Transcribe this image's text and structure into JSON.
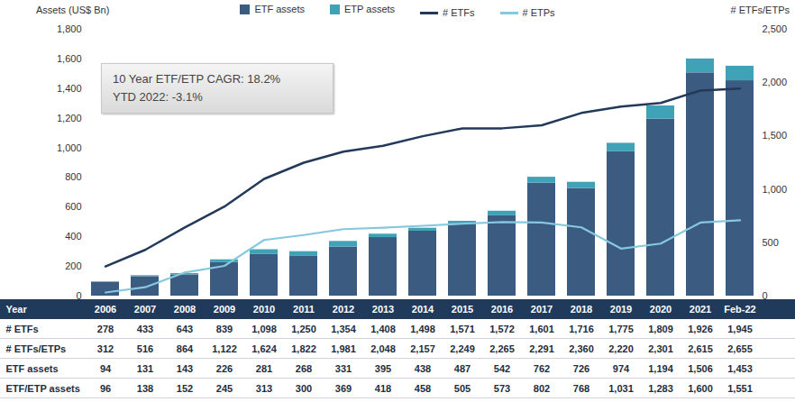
{
  "chart_data": {
    "type": "bar",
    "stacked": true,
    "legend": "top",
    "grid": false,
    "ylabel": "Assets (US$ Bn)",
    "y2label": "# ETFs/ETPs",
    "annotations": [
      "10 Year ETF/ETP CAGR: 18.2%",
      "YTD 2022: -3.1%"
    ],
    "categories": [
      "2006",
      "2007",
      "2008",
      "2009",
      "2010",
      "2011",
      "2012",
      "2013",
      "2014",
      "2015",
      "2016",
      "2017",
      "2018",
      "2019",
      "2020",
      "2021",
      "Feb-22"
    ],
    "series": [
      {
        "name": "ETF assets",
        "type": "bar",
        "color": "#3b5b80",
        "values": [
          94,
          131,
          143,
          226,
          281,
          268,
          331,
          395,
          438,
          487,
          542,
          762,
          726,
          974,
          1194,
          1506,
          1453
        ]
      },
      {
        "name": "ETP assets",
        "type": "bar",
        "color": "#3fa2b6",
        "values": [
          2,
          7,
          9,
          19,
          32,
          32,
          38,
          23,
          20,
          18,
          31,
          40,
          42,
          57,
          89,
          94,
          98
        ]
      },
      {
        "name": "# ETFs",
        "type": "line",
        "axis": "y2",
        "color": "#22395a",
        "values": [
          278,
          433,
          643,
          839,
          1098,
          1250,
          1354,
          1408,
          1498,
          1571,
          1572,
          1601,
          1716,
          1775,
          1809,
          1926,
          1945
        ]
      },
      {
        "name": "# ETPs",
        "type": "line",
        "axis": "y2",
        "color": "#86c8df",
        "values": [
          34,
          83,
          221,
          283,
          526,
          572,
          627,
          640,
          659,
          678,
          693,
          690,
          644,
          445,
          492,
          689,
          710
        ]
      }
    ],
    "ylim": [
      0,
      1800
    ],
    "yticks": [
      0,
      200,
      400,
      600,
      800,
      {
        "value": 1000,
        "label": "1,000"
      },
      {
        "value": 1200,
        "label": "1,200"
      },
      {
        "value": 1400,
        "label": "1,400"
      },
      {
        "value": 1600,
        "label": "1,600"
      },
      {
        "value": 1800,
        "label": "1,800"
      }
    ],
    "y2lim": [
      0,
      2500
    ],
    "y2ticks": [
      0,
      500,
      {
        "value": 1000,
        "label": "1,000"
      },
      {
        "value": 1500,
        "label": "1,500"
      },
      {
        "value": 2000,
        "label": "2,000"
      },
      {
        "value": 2500,
        "label": "2,500"
      }
    ]
  },
  "table": {
    "header": "Year",
    "rows": [
      {
        "label": "# ETFs",
        "values": [
          "278",
          "433",
          "643",
          "839",
          "1,098",
          "1,250",
          "1,354",
          "1,408",
          "1,498",
          "1,571",
          "1,572",
          "1,601",
          "1,716",
          "1,775",
          "1,809",
          "1,926",
          "1,945"
        ]
      },
      {
        "label": "# ETFs/ETPs",
        "values": [
          "312",
          "516",
          "864",
          "1,122",
          "1,624",
          "1,822",
          "1,981",
          "2,048",
          "2,157",
          "2,249",
          "2,265",
          "2,291",
          "2,360",
          "2,220",
          "2,301",
          "2,615",
          "2,655"
        ]
      },
      {
        "label": "ETF assets",
        "values": [
          "94",
          "131",
          "143",
          "226",
          "281",
          "268",
          "331",
          "395",
          "438",
          "487",
          "542",
          "762",
          "726",
          "974",
          "1,194",
          "1,506",
          "1,453"
        ]
      },
      {
        "label": "ETF/ETP assets",
        "values": [
          "96",
          "138",
          "152",
          "245",
          "313",
          "300",
          "369",
          "418",
          "458",
          "505",
          "573",
          "802",
          "768",
          "1,031",
          "1,283",
          "1,600",
          "1,551"
        ]
      }
    ]
  }
}
